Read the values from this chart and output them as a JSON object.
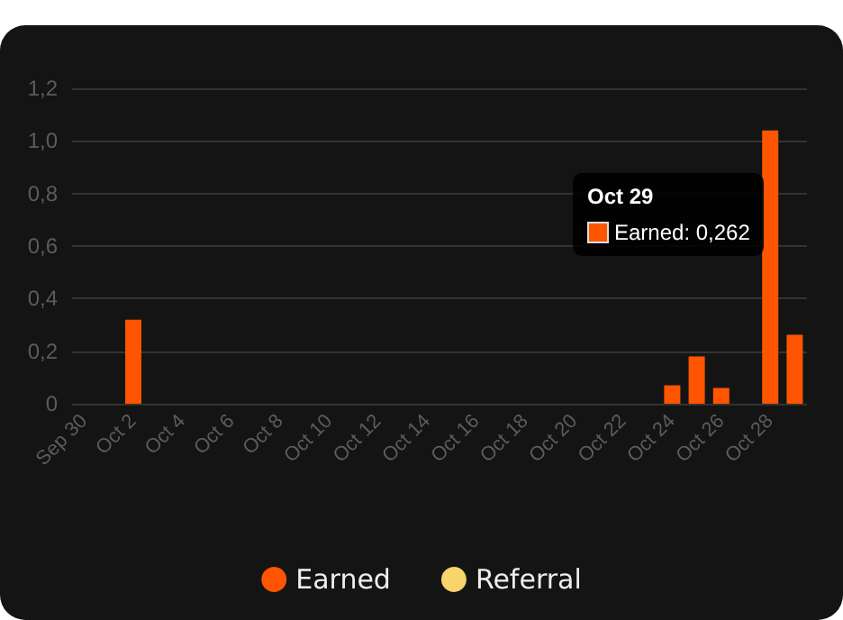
{
  "chart_data": {
    "type": "bar",
    "categories": [
      "Sep 30",
      null,
      "Oct 2",
      null,
      "Oct 4",
      null,
      "Oct 6",
      null,
      "Oct 8",
      null,
      "Oct 10",
      null,
      "Oct 12",
      null,
      "Oct 14",
      null,
      "Oct 16",
      null,
      "Oct 18",
      null,
      "Oct 20",
      null,
      "Oct 22",
      null,
      "Oct 24",
      null,
      "Oct 26",
      null,
      "Oct 28",
      null
    ],
    "series": [
      {
        "name": "Earned",
        "color": "#ff5500",
        "values": [
          0,
          0,
          0.32,
          0,
          0,
          0,
          0,
          0,
          0,
          0,
          0,
          0,
          0,
          0,
          0,
          0,
          0,
          0,
          0,
          0,
          0,
          0,
          0,
          0,
          0.07,
          0.18,
          0.06,
          0,
          1.04,
          0.262
        ]
      },
      {
        "name": "Referral",
        "color": "#f7d56b",
        "values": [
          null,
          null,
          null,
          null,
          null,
          null,
          null,
          null,
          null,
          null,
          null,
          null,
          null,
          null,
          null,
          null,
          null,
          null,
          null,
          null,
          null,
          null,
          null,
          null,
          null,
          null,
          null,
          null,
          null,
          null
        ]
      }
    ],
    "ylim": [
      0,
      1.2
    ],
    "yticks": [
      0,
      {
        "value": 0.2,
        "label": "0,2"
      },
      {
        "value": 0.4,
        "label": "0,4"
      },
      {
        "value": 0.6,
        "label": "0,6"
      },
      {
        "value": 0.8,
        "label": "0,8"
      },
      {
        "value": 1.0,
        "label": "1,0"
      },
      {
        "value": 1.2,
        "label": "1,2"
      }
    ],
    "grid": "y",
    "legend": "bottom",
    "annotations": [
      "Oct 29",
      "Earned: 0,262"
    ]
  }
}
